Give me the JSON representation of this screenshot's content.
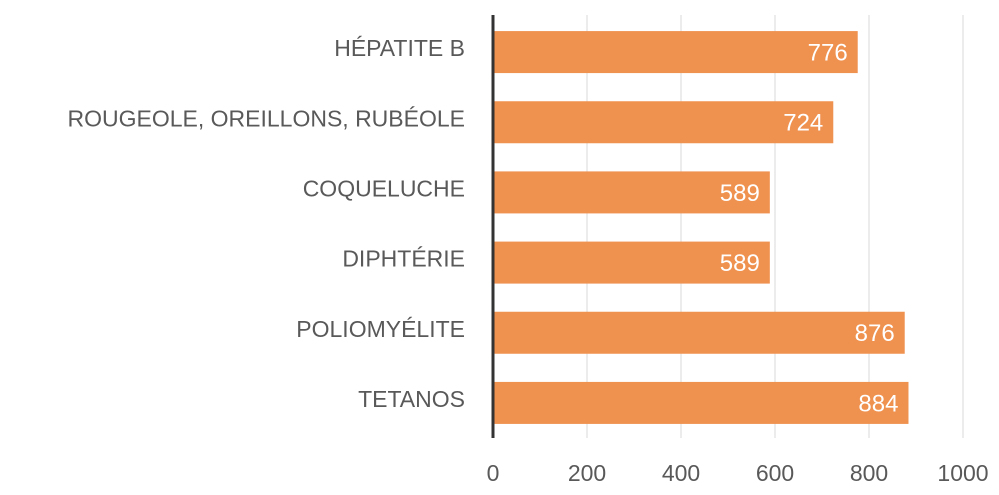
{
  "chart_data": {
    "type": "bar",
    "orientation": "horizontal",
    "categories": [
      "HÉPATITE B",
      "ROUGEOLE, OREILLONS, RUBÉOLE",
      "COQUELUCHE",
      "DIPHTÉRIE",
      "POLIOMYÉLITE",
      "TETANOS"
    ],
    "values": [
      776,
      724,
      589,
      589,
      876,
      884
    ],
    "color": "#ef914f",
    "xlim": [
      0,
      1000
    ],
    "xticks": [
      0,
      200,
      400,
      600,
      800,
      1000
    ],
    "grid": true
  }
}
